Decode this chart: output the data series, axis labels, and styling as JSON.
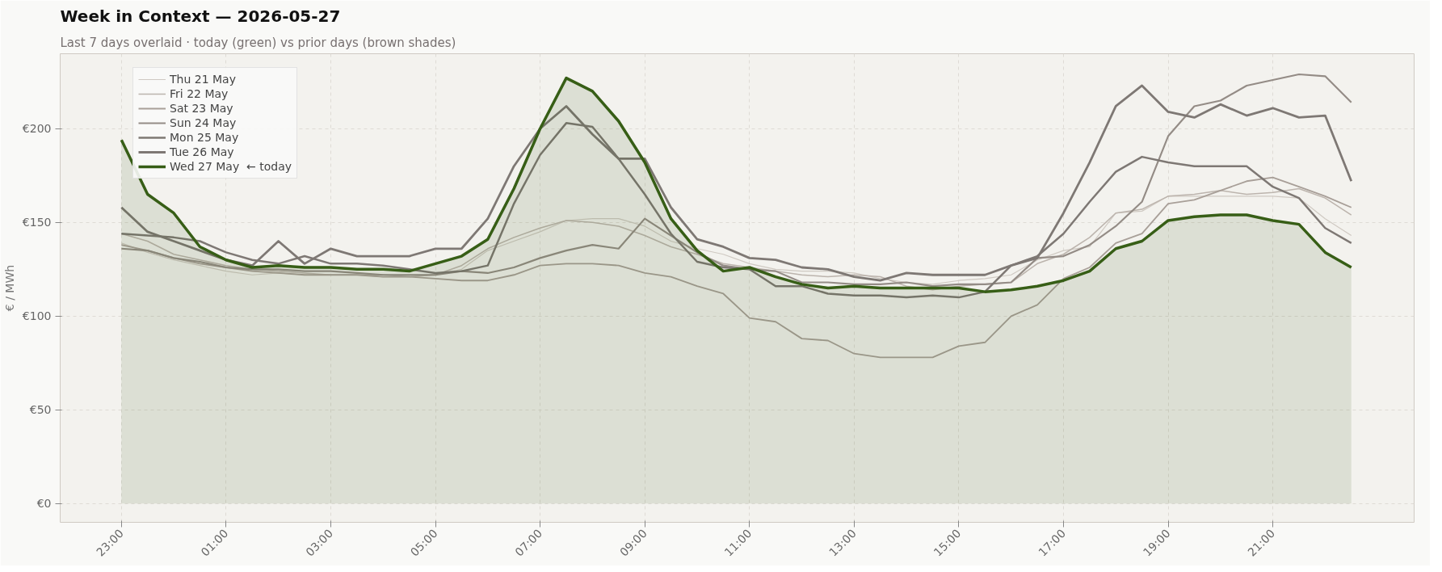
{
  "chart_data": {
    "type": "line",
    "title": "Week in Context — 2026-05-27",
    "subtitle": "Last 7 days overlaid  ·  today (green) vs prior days (brown shades)",
    "ylabel": "€ / MWh",
    "categories": [
      "23:00",
      null,
      null,
      null,
      "01:00",
      null,
      null,
      null,
      "03:00",
      null,
      null,
      null,
      "05:00",
      null,
      null,
      null,
      "07:00",
      null,
      null,
      null,
      "09:00",
      null,
      null,
      null,
      "11:00",
      null,
      null,
      null,
      "13:00",
      null,
      null,
      null,
      "15:00",
      null,
      null,
      null,
      "17:00",
      null,
      null,
      null,
      "19:00",
      null,
      null,
      null,
      "21:00",
      null,
      null,
      null
    ],
    "ylim": [
      -10,
      240
    ],
    "yticks": [
      {
        "value": 0,
        "label": "€0"
      },
      {
        "value": 50,
        "label": "€50"
      },
      {
        "value": 100,
        "label": "€100"
      },
      {
        "value": 150,
        "label": "€150"
      },
      {
        "value": 200,
        "label": "€200"
      }
    ],
    "grid": true,
    "legend": "top left",
    "line_style": "solid",
    "series": [
      {
        "name": "Thu 21 May",
        "color": "#cfc9c2",
        "values": [
          139,
          134,
          130,
          127,
          124,
          122,
          123,
          122,
          122,
          122,
          121,
          121,
          122,
          125,
          135,
          140,
          145,
          151,
          152,
          152,
          148,
          140,
          136,
          133,
          128,
          125,
          124,
          124,
          123,
          120,
          118,
          117,
          119,
          120,
          122,
          130,
          135,
          137,
          155,
          156,
          164,
          164,
          164,
          164,
          164,
          163,
          152,
          143
        ]
      },
      {
        "name": "Fri 22 May",
        "color": "#bcb4ad",
        "values": [
          144,
          140,
          133,
          130,
          127,
          125,
          124,
          123,
          122,
          122,
          122,
          121,
          122,
          127,
          136,
          142,
          147,
          151,
          150,
          148,
          143,
          137,
          133,
          128,
          126,
          124,
          122,
          121,
          122,
          121,
          116,
          114,
          116,
          117,
          118,
          128,
          133,
          142,
          155,
          157,
          164,
          165,
          167,
          165,
          166,
          168,
          163,
          154
        ]
      },
      {
        "name": "Sat 23 May",
        "color": "#a89f98",
        "values": [
          138,
          135,
          131,
          128,
          126,
          124,
          123,
          122,
          122,
          122,
          121,
          121,
          120,
          119,
          119,
          122,
          127,
          128,
          128,
          127,
          123,
          121,
          116,
          112,
          99,
          97,
          88,
          87,
          80,
          78,
          78,
          78,
          84,
          86,
          100,
          106,
          120,
          126,
          139,
          144,
          160,
          162,
          167,
          172,
          174,
          169,
          164,
          158
        ]
      },
      {
        "name": "Sun 24 May",
        "color": "#948c86",
        "values": [
          136,
          135,
          131,
          129,
          126,
          125,
          125,
          124,
          124,
          123,
          122,
          122,
          122,
          124,
          123,
          126,
          131,
          135,
          138,
          136,
          152,
          143,
          134,
          127,
          125,
          124,
          118,
          118,
          117,
          117,
          118,
          116,
          117,
          117,
          118,
          131,
          132,
          138,
          148,
          161,
          196,
          212,
          215,
          223,
          226,
          229,
          228,
          214
        ]
      },
      {
        "name": "Mon 25 May",
        "color": "#7e7874",
        "values": [
          144,
          143,
          142,
          140,
          134,
          130,
          128,
          132,
          128,
          128,
          127,
          125,
          123,
          124,
          127,
          160,
          186,
          203,
          201,
          184,
          165,
          144,
          129,
          126,
          125,
          116,
          116,
          112,
          111,
          111,
          110,
          111,
          110,
          113,
          127,
          132,
          144,
          161,
          177,
          185,
          182,
          180,
          180,
          180,
          169,
          163,
          147,
          139
        ]
      },
      {
        "name": "Tue 26 May",
        "color": "#7e7874",
        "values": [
          158,
          145,
          140,
          135,
          130,
          127,
          140,
          128,
          136,
          132,
          132,
          132,
          136,
          136,
          152,
          180,
          200,
          212,
          197,
          184,
          184,
          158,
          141,
          137,
          131,
          130,
          126,
          125,
          121,
          119,
          123,
          122,
          122,
          122,
          127,
          131,
          155,
          182,
          212,
          223,
          209,
          206,
          213,
          207,
          211,
          206,
          207,
          172
        ]
      },
      {
        "name": "Wed 27 May  ← today",
        "type": "area",
        "color": "#375e16",
        "values": [
          194,
          165,
          155,
          137,
          130,
          126,
          127,
          126,
          126,
          125,
          125,
          124,
          128,
          132,
          141,
          168,
          200,
          227,
          220,
          204,
          182,
          152,
          135,
          124,
          126,
          121,
          117,
          115,
          116,
          115,
          115,
          115,
          115,
          113,
          114,
          116,
          119,
          124,
          136,
          140,
          151,
          153,
          154,
          154,
          151,
          149,
          134,
          126
        ]
      }
    ]
  }
}
